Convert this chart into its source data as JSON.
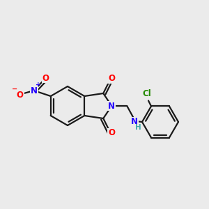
{
  "background_color": "#ebebeb",
  "bond_color": "#1a1a1a",
  "figsize": [
    3.0,
    3.0
  ],
  "dpi": 100,
  "colors": {
    "O": "#ff0000",
    "N": "#2200ff",
    "H": "#44aaaa",
    "Cl": "#228800"
  }
}
